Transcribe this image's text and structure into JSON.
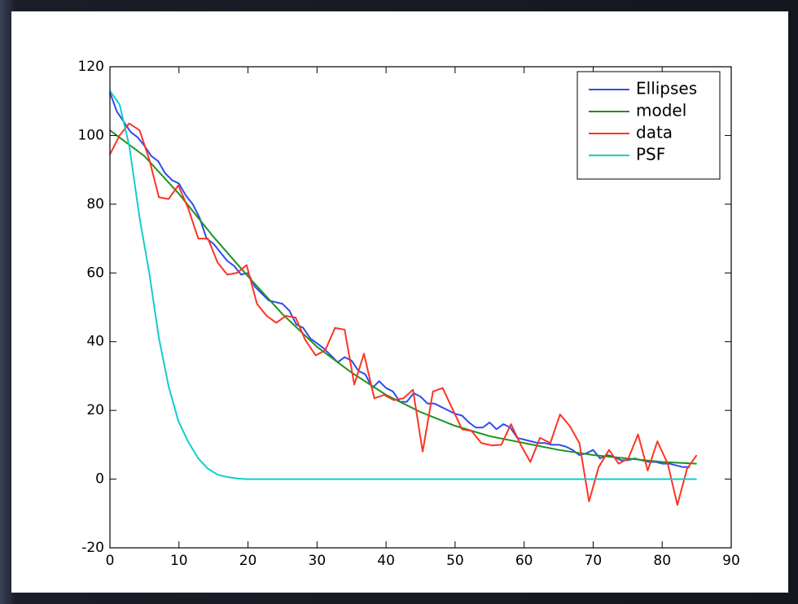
{
  "chart_data": {
    "type": "line",
    "xlim": [
      0,
      90
    ],
    "ylim": [
      -20,
      120
    ],
    "xticks": [
      0,
      10,
      20,
      30,
      40,
      50,
      60,
      70,
      80,
      90
    ],
    "yticks": [
      -20,
      0,
      20,
      40,
      60,
      80,
      100,
      120
    ],
    "legend": "upper right",
    "series": [
      {
        "name": "Ellipses",
        "color": "#2f4cf0",
        "x": [
          0,
          1,
          2,
          3,
          4,
          5,
          6,
          7,
          8,
          9,
          10,
          11,
          12,
          13,
          14,
          15,
          16,
          17,
          18,
          19,
          20,
          21,
          22,
          23,
          24,
          25,
          26,
          27,
          28,
          29,
          30,
          31,
          32,
          33,
          34,
          35,
          36,
          37,
          38,
          39,
          40,
          41,
          42,
          43,
          44,
          45,
          46,
          47,
          48,
          49,
          50,
          51,
          52,
          53,
          54,
          55,
          56,
          57,
          58,
          59,
          60,
          61,
          62,
          63,
          64,
          65,
          66,
          67,
          68,
          69,
          70,
          71,
          72,
          73,
          74,
          75,
          76,
          77,
          78,
          79,
          80,
          81,
          82,
          83,
          84
        ],
        "values": [
          112.5,
          107,
          104,
          101,
          99.5,
          97,
          94,
          92.5,
          89,
          87,
          86,
          82.5,
          80,
          76,
          70,
          68.5,
          66,
          63.5,
          62,
          59.5,
          60,
          56,
          54,
          52,
          51.5,
          51,
          49,
          45,
          44,
          41,
          39.5,
          38,
          36,
          34,
          35.5,
          34.5,
          31.5,
          30.5,
          26.5,
          28.5,
          26.5,
          25.5,
          22.5,
          22.5,
          25,
          24,
          22,
          22,
          21,
          20,
          19,
          18.5,
          16.5,
          15,
          15,
          16.5,
          14.5,
          16,
          15,
          12,
          11.5,
          11,
          10.5,
          10.5,
          10,
          10,
          9.5,
          8.5,
          7,
          7.5,
          8.5,
          6,
          7,
          6.5,
          5.5,
          5.5,
          6,
          5.5,
          5,
          5,
          4.5,
          4.5,
          4,
          3.5,
          3.5
        ]
      },
      {
        "name": "model",
        "color": "#1f921f",
        "x": [
          0,
          5,
          10,
          15,
          20,
          25,
          30,
          35,
          40,
          45,
          50,
          55,
          60,
          65,
          70,
          75,
          80,
          85
        ],
        "values": [
          101.5,
          94,
          83,
          70.5,
          59,
          48,
          38.5,
          31,
          24.5,
          19.5,
          15.5,
          12.5,
          10.5,
          8.5,
          7,
          6,
          5,
          4.5
        ]
      },
      {
        "name": "data",
        "color": "#ff3322",
        "x": [
          0,
          1.4,
          2.8,
          4.3,
          5.7,
          7.1,
          8.5,
          9.9,
          11.3,
          12.8,
          14.2,
          15.6,
          17,
          18.4,
          19.8,
          21.3,
          22.7,
          24.1,
          25.5,
          26.9,
          28.3,
          29.8,
          31.2,
          32.6,
          34,
          35.4,
          36.8,
          38.3,
          39.7,
          41.1,
          42.5,
          43.9,
          45.3,
          46.8,
          48.2,
          49.6,
          51,
          52.4,
          53.8,
          55.3,
          56.7,
          58.1,
          59.5,
          60.9,
          62.3,
          63.8,
          65.2,
          66.6,
          68,
          69.4,
          70.8,
          72.3,
          73.7,
          75.1,
          76.5,
          77.9,
          79.3,
          80.8,
          82.2,
          83.6,
          85
        ],
        "values": [
          94.5,
          100,
          103.5,
          101.5,
          93,
          82,
          81.5,
          85.5,
          79,
          70,
          70,
          63,
          59.5,
          60,
          62.3,
          51,
          47.5,
          45.5,
          47.5,
          47,
          40.5,
          36,
          37.5,
          44,
          43.5,
          27.5,
          36.5,
          23.5,
          24.5,
          23,
          23.5,
          26,
          8,
          25.5,
          26.5,
          20.5,
          14.5,
          14,
          10.5,
          9.8,
          10,
          16,
          10,
          5,
          12,
          10.5,
          18.8,
          15.5,
          10.5,
          -6.5,
          3.5,
          8.5,
          4.5,
          6,
          13,
          2.5,
          11,
          4.5,
          -7.5,
          3,
          7
        ]
      },
      {
        "name": "PSF",
        "color": "#12cccc",
        "x": [
          0,
          1.4,
          2.8,
          4.3,
          5.7,
          7.1,
          8.5,
          9.9,
          11.3,
          12.8,
          14.2,
          15.6,
          17,
          18.4,
          19.8,
          85
        ],
        "values": [
          113,
          109,
          97,
          76,
          60,
          41,
          27,
          17,
          11,
          6,
          3,
          1.3,
          0.6,
          0.2,
          0,
          0
        ]
      }
    ]
  }
}
